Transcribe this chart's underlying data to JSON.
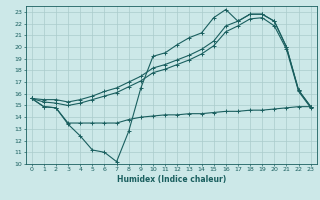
{
  "xlabel": "Humidex (Indice chaleur)",
  "bg_color": "#cce8e8",
  "grid_color": "#aacccc",
  "line_color": "#1a5f5f",
  "xlim": [
    -0.5,
    23.5
  ],
  "ylim": [
    10,
    23.5
  ],
  "xticks": [
    0,
    1,
    2,
    3,
    4,
    5,
    6,
    7,
    8,
    9,
    10,
    11,
    12,
    13,
    14,
    15,
    16,
    17,
    18,
    19,
    20,
    21,
    22,
    23
  ],
  "yticks": [
    10,
    11,
    12,
    13,
    14,
    15,
    16,
    17,
    18,
    19,
    20,
    21,
    22,
    23
  ],
  "line1_x": [
    0,
    1,
    2,
    3,
    4,
    5,
    6,
    7,
    8,
    9,
    10,
    11,
    12,
    13,
    14,
    15,
    16,
    17,
    18,
    19,
    20,
    21,
    22,
    23
  ],
  "line1_y": [
    15.6,
    14.9,
    14.8,
    13.4,
    12.4,
    11.2,
    11.0,
    10.2,
    12.8,
    16.5,
    19.2,
    19.5,
    20.2,
    20.8,
    21.2,
    22.5,
    23.2,
    22.2,
    22.8,
    22.8,
    22.2,
    20.0,
    16.3,
    14.9
  ],
  "line2_x": [
    0,
    1,
    2,
    3,
    4,
    5,
    6,
    7,
    8,
    9,
    10,
    11,
    12,
    13,
    14,
    15,
    16,
    17,
    18,
    19,
    20,
    21,
    22,
    23
  ],
  "line2_y": [
    15.6,
    15.5,
    15.5,
    15.3,
    15.5,
    15.8,
    16.2,
    16.5,
    17.0,
    17.5,
    18.2,
    18.5,
    18.9,
    19.3,
    19.8,
    20.5,
    21.8,
    22.2,
    22.8,
    22.8,
    22.2,
    20.0,
    16.3,
    14.9
  ],
  "line3_x": [
    0,
    1,
    2,
    3,
    4,
    5,
    6,
    7,
    8,
    9,
    10,
    11,
    12,
    13,
    14,
    15,
    16,
    17,
    18,
    19,
    20,
    21,
    22,
    23
  ],
  "line3_y": [
    15.6,
    15.3,
    15.2,
    15.0,
    15.2,
    15.5,
    15.8,
    16.1,
    16.6,
    17.1,
    17.8,
    18.1,
    18.5,
    18.9,
    19.4,
    20.1,
    21.3,
    21.8,
    22.4,
    22.5,
    21.8,
    19.8,
    16.2,
    14.8
  ],
  "line4_x": [
    0,
    1,
    2,
    3,
    4,
    5,
    6,
    7,
    8,
    9,
    10,
    11,
    12,
    13,
    14,
    15,
    16,
    17,
    18,
    19,
    20,
    21,
    22,
    23
  ],
  "line4_y": [
    15.6,
    14.9,
    14.8,
    13.5,
    13.5,
    13.5,
    13.5,
    13.5,
    13.8,
    14.0,
    14.1,
    14.2,
    14.2,
    14.3,
    14.3,
    14.4,
    14.5,
    14.5,
    14.6,
    14.6,
    14.7,
    14.8,
    14.9,
    14.9
  ]
}
